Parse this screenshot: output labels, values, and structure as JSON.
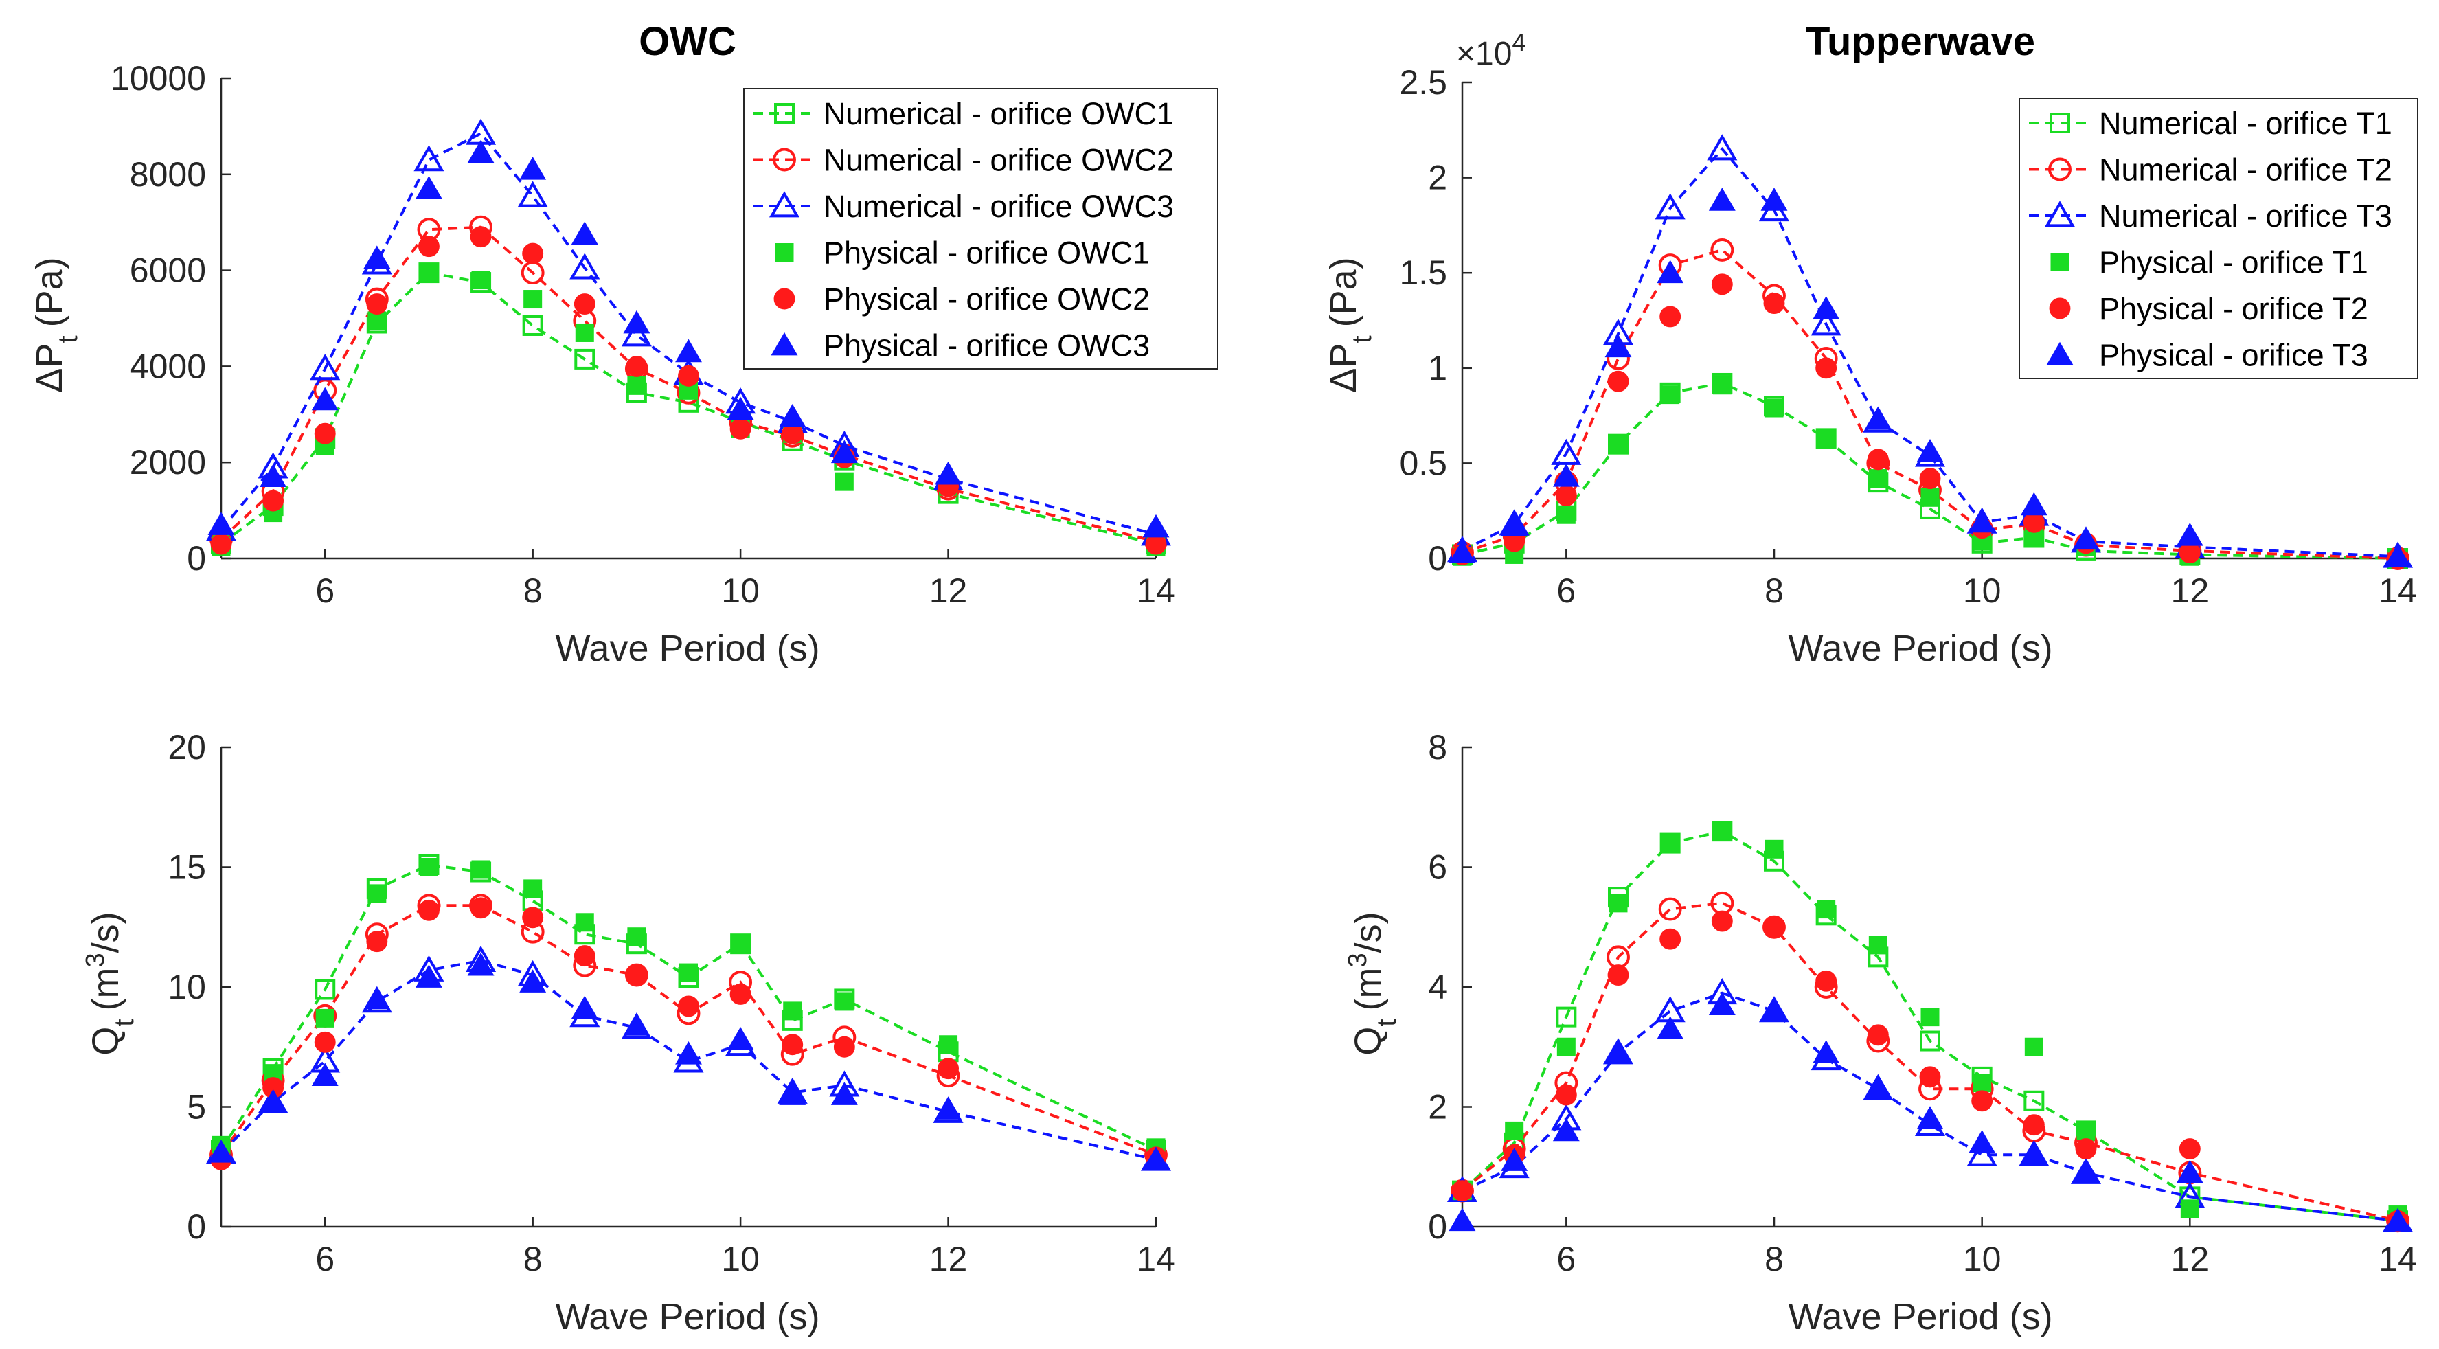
{
  "colors": {
    "green": "#1bdc23",
    "red": "#ff1a1a",
    "blue": "#0d14ff",
    "axis": "#262626"
  },
  "chart_data": [
    {
      "id": "owc_dp",
      "type": "line",
      "title": "OWC",
      "xlabel": "Wave Period (s)",
      "ylabel": "ΔP",
      "ylabel_sub": "t",
      "ylabel_unit": "(Pa)",
      "xlim": [
        5,
        14
      ],
      "ylim": [
        0,
        10000
      ],
      "xticks": [
        6,
        8,
        10,
        12,
        14
      ],
      "yticks": [
        0,
        2000,
        4000,
        6000,
        8000,
        10000
      ],
      "ytick_labels": [
        "0",
        "2000",
        "4000",
        "6000",
        "8000",
        "10000"
      ],
      "legend": [
        "Numerical - orifice OWC1",
        "Numerical - orifice OWC2",
        "Numerical - orifice OWC3",
        "Physical - orifice OWC1",
        "Physical - orifice OWC2",
        "Physical - orifice OWC3"
      ],
      "numerical": [
        {
          "name": "Numerical - orifice OWC1",
          "x": [
            5,
            5.5,
            6,
            6.5,
            7,
            7.5,
            8,
            8.5,
            9,
            9.5,
            10,
            10.5,
            11,
            12,
            14
          ],
          "y": [
            300,
            1100,
            2500,
            4900,
            5950,
            5750,
            4850,
            4150,
            3450,
            3250,
            2850,
            2450,
            2050,
            1350,
            300
          ]
        },
        {
          "name": "Numerical - orifice OWC2",
          "x": [
            5,
            5.5,
            6,
            6.5,
            7,
            7.5,
            8,
            8.5,
            9,
            9.5,
            10,
            10.5,
            11,
            12,
            14
          ],
          "y": [
            400,
            1400,
            3500,
            5400,
            6850,
            6900,
            5950,
            4950,
            3950,
            3450,
            2850,
            2550,
            2150,
            1450,
            350
          ]
        },
        {
          "name": "Numerical - orifice OWC3",
          "x": [
            5,
            5.5,
            6,
            6.5,
            7,
            7.5,
            8,
            8.5,
            9,
            9.5,
            10,
            10.5,
            11,
            12,
            14
          ],
          "y": [
            600,
            1900,
            3950,
            6150,
            8300,
            8850,
            7550,
            6050,
            4650,
            3850,
            3250,
            2850,
            2350,
            1650,
            500
          ]
        }
      ],
      "physical": [
        {
          "name": "Physical - orifice OWC1",
          "x": [
            5,
            5.5,
            6,
            6.5,
            7,
            7.5,
            8,
            8.5,
            9,
            9.5,
            10,
            10.5,
            11,
            12,
            14
          ],
          "y": [
            250,
            950,
            2350,
            4950,
            5950,
            5800,
            5400,
            4700,
            3600,
            3500,
            2700,
            2600,
            1600,
            1500,
            250
          ]
        },
        {
          "name": "Physical - orifice OWC2",
          "x": [
            5,
            5.5,
            6,
            6.5,
            7,
            7.5,
            8,
            8.5,
            9,
            9.5,
            10,
            10.5,
            11,
            12,
            14
          ],
          "y": [
            300,
            1200,
            2600,
            5300,
            6500,
            6700,
            6350,
            5300,
            4000,
            3800,
            2700,
            2600,
            2100,
            1500,
            300
          ]
        },
        {
          "name": "Physical - orifice OWC3",
          "x": [
            5,
            5.5,
            6,
            6.5,
            7,
            7.5,
            8,
            8.5,
            9,
            9.5,
            10,
            10.5,
            11,
            12,
            14
          ],
          "y": [
            700,
            1700,
            3300,
            6250,
            7700,
            8450,
            8100,
            6750,
            4900,
            4300,
            3100,
            2950,
            2200,
            1750,
            650
          ]
        }
      ]
    },
    {
      "id": "tw_dp",
      "type": "line",
      "title": "Tupperwave",
      "xlabel": "Wave Period (s)",
      "ylabel": "ΔP",
      "ylabel_sub": "t",
      "ylabel_unit": "(Pa)",
      "y_multiplier": "×10",
      "y_multiplier_exp": "4",
      "xlim": [
        5,
        14
      ],
      "ylim": [
        0,
        25000
      ],
      "xticks": [
        6,
        8,
        10,
        12,
        14
      ],
      "yticks": [
        0,
        5000,
        10000,
        15000,
        20000,
        25000
      ],
      "ytick_labels": [
        "0",
        "0.5",
        "1",
        "1.5",
        "2",
        "2.5"
      ],
      "legend": [
        "Numerical - orifice T1",
        "Numerical - orifice T2",
        "Numerical - orifice T3",
        "Physical - orifice T1",
        "Physical - orifice T2",
        "Physical - orifice T3"
      ],
      "numerical": [
        {
          "name": "Numerical - orifice T1",
          "x": [
            5,
            5.5,
            6,
            6.5,
            7,
            7.5,
            8,
            8.5,
            9,
            9.5,
            10,
            10.5,
            11,
            12,
            14
          ],
          "y": [
            200,
            800,
            2500,
            6000,
            8700,
            9200,
            8000,
            6300,
            4000,
            2600,
            800,
            1100,
            400,
            200,
            0
          ]
        },
        {
          "name": "Numerical - orifice T2",
          "x": [
            5,
            5.5,
            6,
            6.5,
            7,
            7.5,
            8,
            8.5,
            9,
            9.5,
            10,
            10.5,
            11,
            12,
            14
          ],
          "y": [
            300,
            1200,
            4000,
            10500,
            15400,
            16200,
            13800,
            10500,
            5000,
            3600,
            1500,
            1800,
            700,
            400,
            0
          ]
        },
        {
          "name": "Numerical - orifice T3",
          "x": [
            5,
            5.5,
            6,
            6.5,
            7,
            7.5,
            8,
            8.5,
            9,
            9.5,
            10,
            10.5,
            11,
            12,
            14
          ],
          "y": [
            400,
            1800,
            5500,
            11800,
            18400,
            21500,
            18300,
            12300,
            7200,
            5400,
            1900,
            2300,
            900,
            600,
            100
          ]
        }
      ],
      "physical": [
        {
          "name": "Physical - orifice T1",
          "x": [
            5,
            5.5,
            6,
            6.5,
            7,
            7.5,
            8,
            8.5,
            9,
            9.5,
            10,
            10.5,
            11,
            12,
            14
          ],
          "y": [
            100,
            200,
            2300,
            6000,
            8600,
            9100,
            7900,
            6300,
            4200,
            3200,
            900,
            1200,
            600,
            100,
            0
          ]
        },
        {
          "name": "Physical - orifice T2",
          "x": [
            5,
            5.5,
            6,
            6.5,
            7,
            7.5,
            8,
            8.5,
            9,
            9.5,
            10,
            10.5,
            11,
            12,
            14
          ],
          "y": [
            200,
            900,
            3300,
            9300,
            12700,
            14400,
            13400,
            10000,
            5200,
            4200,
            1600,
            1900,
            800,
            300,
            0
          ]
        },
        {
          "name": "Physical - orifice T3",
          "x": [
            5,
            5.5,
            6,
            6.5,
            7,
            7.5,
            8,
            8.5,
            9,
            9.5,
            10,
            10.5,
            11,
            12,
            14
          ],
          "y": [
            300,
            1700,
            4300,
            11100,
            15000,
            18800,
            18800,
            13100,
            7300,
            5600,
            1900,
            2800,
            1000,
            1200,
            100
          ]
        }
      ]
    },
    {
      "id": "owc_q",
      "type": "line",
      "xlabel": "Wave Period (s)",
      "ylabel": "Q",
      "ylabel_sub": "t",
      "ylabel_unit_pre": "(m",
      "ylabel_unit_sup": "3",
      "ylabel_unit_post": "/s)",
      "xlim": [
        5,
        14
      ],
      "ylim": [
        0,
        20
      ],
      "xticks": [
        6,
        8,
        10,
        12,
        14
      ],
      "yticks": [
        0,
        5,
        10,
        15,
        20
      ],
      "ytick_labels": [
        "0",
        "5",
        "10",
        "15",
        "20"
      ],
      "numerical": [
        {
          "name": "Numerical - orifice OWC1",
          "x": [
            5,
            5.5,
            6,
            6.5,
            7,
            7.5,
            8,
            8.5,
            9,
            9.5,
            10,
            10.5,
            11,
            12,
            14
          ],
          "y": [
            3.2,
            6.6,
            9.9,
            14.1,
            15.1,
            14.8,
            13.6,
            12.2,
            11.8,
            10.4,
            11.8,
            8.6,
            9.5,
            7.3,
            3.2
          ]
        },
        {
          "name": "Numerical - orifice OWC2",
          "x": [
            5,
            5.5,
            6,
            6.5,
            7,
            7.5,
            8,
            8.5,
            9,
            9.5,
            10,
            10.5,
            11,
            12,
            14
          ],
          "y": [
            3.0,
            6.1,
            8.8,
            12.2,
            13.4,
            13.4,
            12.3,
            10.9,
            10.5,
            8.9,
            10.2,
            7.2,
            7.9,
            6.3,
            3.0
          ]
        },
        {
          "name": "Numerical - orifice OWC3",
          "x": [
            5,
            5.5,
            6,
            6.5,
            7,
            7.5,
            8,
            8.5,
            9,
            9.5,
            10,
            10.5,
            11,
            12,
            14
          ],
          "y": [
            3.1,
            5.2,
            6.9,
            9.4,
            10.7,
            11.1,
            10.5,
            8.8,
            8.3,
            6.9,
            7.6,
            5.6,
            5.9,
            4.8,
            2.8
          ]
        }
      ],
      "physical": [
        {
          "name": "Physical - orifice OWC1",
          "x": [
            5,
            5.5,
            6,
            6.5,
            7,
            7.5,
            8,
            8.5,
            9,
            9.5,
            10,
            10.5,
            11,
            12,
            14
          ],
          "y": [
            3.4,
            6.4,
            8.7,
            13.9,
            15.0,
            14.9,
            14.1,
            12.7,
            12.1,
            10.6,
            11.8,
            9.0,
            9.4,
            7.6,
            3.3
          ]
        },
        {
          "name": "Physical - orifice OWC2",
          "x": [
            5,
            5.5,
            6,
            6.5,
            7,
            7.5,
            8,
            8.5,
            9,
            9.5,
            10,
            10.5,
            11,
            12,
            14
          ],
          "y": [
            2.8,
            5.8,
            7.7,
            11.9,
            13.2,
            13.3,
            12.9,
            11.3,
            10.5,
            9.2,
            9.7,
            7.6,
            7.5,
            6.6,
            2.9
          ]
        },
        {
          "name": "Physical - orifice OWC3",
          "x": [
            5,
            5.5,
            6,
            6.5,
            7,
            7.5,
            8,
            8.5,
            9,
            9.5,
            10,
            10.5,
            11,
            12,
            14
          ],
          "y": [
            3.1,
            5.2,
            6.3,
            9.5,
            10.4,
            10.9,
            10.2,
            9.1,
            8.4,
            7.2,
            7.8,
            5.5,
            5.5,
            4.9,
            2.8
          ]
        }
      ]
    },
    {
      "id": "tw_q",
      "type": "line",
      "xlabel": "Wave Period (s)",
      "ylabel": "Q",
      "ylabel_sub": "t",
      "ylabel_unit_pre": "(m",
      "ylabel_unit_sup": "3",
      "ylabel_unit_post": "/s)",
      "xlim": [
        5,
        14
      ],
      "ylim": [
        0,
        8
      ],
      "xticks": [
        6,
        8,
        10,
        12,
        14
      ],
      "yticks": [
        0,
        2,
        4,
        6,
        8
      ],
      "ytick_labels": [
        "0",
        "2",
        "4",
        "6",
        "8"
      ],
      "numerical": [
        {
          "name": "Numerical - orifice T1",
          "x": [
            5,
            5.5,
            6,
            6.5,
            7,
            7.5,
            8,
            8.5,
            9,
            9.5,
            10,
            10.5,
            11,
            12,
            14
          ],
          "y": [
            0.6,
            1.4,
            3.5,
            5.5,
            6.4,
            6.6,
            6.1,
            5.2,
            4.5,
            3.1,
            2.5,
            2.1,
            1.6,
            0.5,
            0.1
          ]
        },
        {
          "name": "Numerical - orifice T2",
          "x": [
            5,
            5.5,
            6,
            6.5,
            7,
            7.5,
            8,
            8.5,
            9,
            9.5,
            10,
            10.5,
            11,
            12,
            14
          ],
          "y": [
            0.6,
            1.3,
            2.4,
            4.5,
            5.3,
            5.4,
            5.0,
            4.0,
            3.1,
            2.3,
            2.3,
            1.6,
            1.4,
            0.9,
            0.1
          ]
        },
        {
          "name": "Numerical - orifice T3",
          "x": [
            5,
            5.5,
            6,
            6.5,
            7,
            7.5,
            8,
            8.5,
            9,
            9.5,
            10,
            10.5,
            11,
            12,
            14
          ],
          "y": [
            0.6,
            1.0,
            1.8,
            2.9,
            3.6,
            3.9,
            3.6,
            2.8,
            2.3,
            1.7,
            1.2,
            1.2,
            0.9,
            0.5,
            0.1
          ]
        }
      ],
      "physical": [
        {
          "name": "Physical - orifice T1",
          "x": [
            5,
            5.5,
            6,
            6.5,
            7,
            7.5,
            8,
            8.5,
            9,
            9.5,
            10,
            10.5,
            11,
            12,
            14
          ],
          "y": [
            0.6,
            1.6,
            3.0,
            5.4,
            6.4,
            6.6,
            6.3,
            5.3,
            4.7,
            3.5,
            2.4,
            3.0,
            1.6,
            0.3,
            0.2
          ]
        },
        {
          "name": "Physical - orifice T2",
          "x": [
            5,
            5.5,
            6,
            6.5,
            7,
            7.5,
            8,
            8.5,
            9,
            9.5,
            10,
            10.5,
            11,
            12,
            14
          ],
          "y": [
            0.6,
            1.2,
            2.2,
            4.2,
            4.8,
            5.1,
            5.0,
            4.1,
            3.2,
            2.5,
            2.1,
            1.7,
            1.3,
            1.3,
            0.1
          ]
        },
        {
          "name": "Physical - orifice T3",
          "x": [
            5,
            5.5,
            6,
            6.5,
            7,
            7.5,
            8,
            8.5,
            9,
            9.5,
            10,
            10.5,
            11,
            12,
            14
          ],
          "y": [
            0.1,
            1.1,
            1.6,
            2.9,
            3.3,
            3.7,
            3.6,
            2.9,
            2.3,
            1.8,
            1.4,
            1.2,
            0.9,
            0.9,
            0.1
          ]
        }
      ]
    }
  ]
}
